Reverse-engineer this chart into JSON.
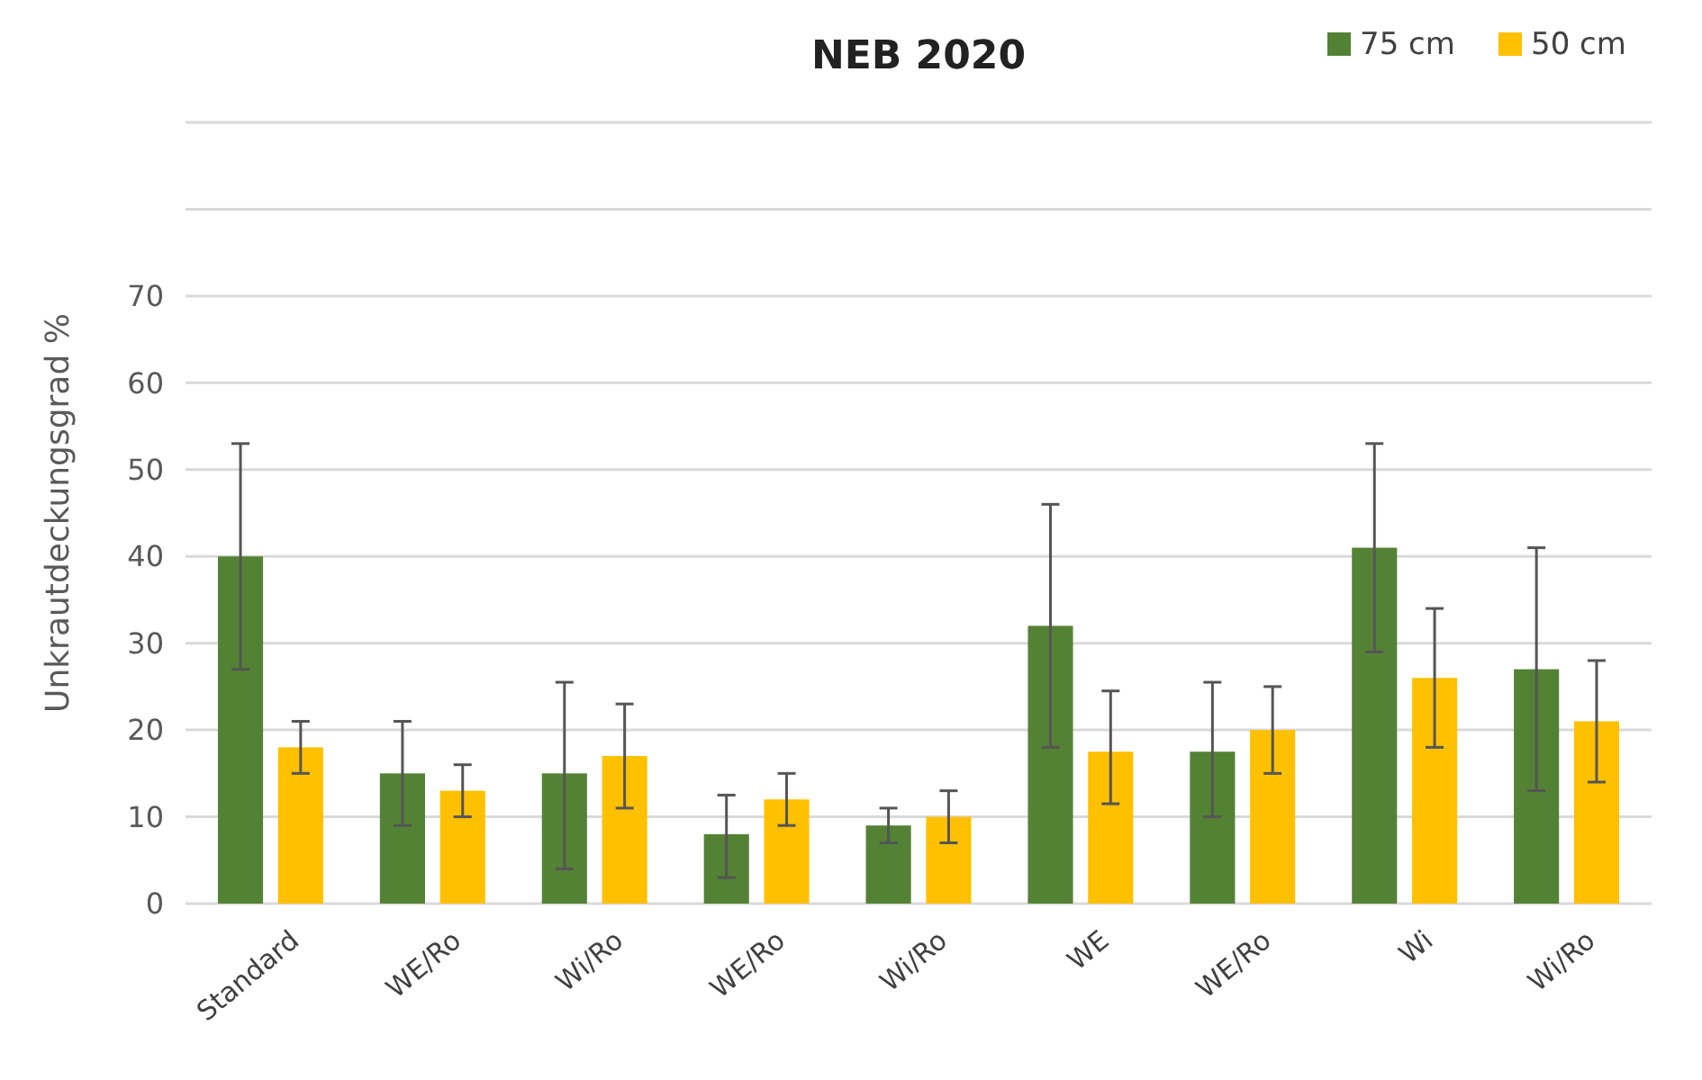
{
  "chart_data": {
    "type": "bar",
    "title": "NEB 2020",
    "ylabel": "Unkrautdeckungsgrad %",
    "categories": [
      "Standard",
      "WE/Ro",
      "Wi/Ro",
      "WE/Ro",
      "Wi/Ro",
      "WE",
      "WE/Ro",
      "Wi",
      "Wi/Ro"
    ],
    "series": [
      {
        "name": "75 cm",
        "color": "#548235",
        "values": [
          40,
          15,
          15,
          8,
          9,
          32,
          17.5,
          41,
          27
        ],
        "errors": [
          [
            27,
            53
          ],
          [
            9,
            21
          ],
          [
            4,
            25.5
          ],
          [
            3,
            12.5
          ],
          [
            7,
            11
          ],
          [
            18,
            46
          ],
          [
            10,
            25.5
          ],
          [
            29,
            53
          ],
          [
            13,
            41
          ]
        ]
      },
      {
        "name": "50 cm",
        "color": "#ffc000",
        "values": [
          18,
          13,
          17,
          12,
          10,
          17.5,
          20,
          26,
          21
        ],
        "errors": [
          [
            15,
            21
          ],
          [
            10,
            16
          ],
          [
            11,
            23
          ],
          [
            9,
            15
          ],
          [
            7,
            13
          ],
          [
            11.5,
            24.5
          ],
          [
            15,
            25
          ],
          [
            18,
            34
          ],
          [
            14,
            28
          ]
        ]
      }
    ],
    "ylim": [
      0,
      90
    ],
    "yticks": [
      0,
      10,
      20,
      30,
      40,
      50,
      60,
      70,
      {
        "value": 80,
        "label": null
      },
      {
        "value": 90,
        "label": null
      }
    ],
    "grid": "y",
    "legend": "top right"
  }
}
